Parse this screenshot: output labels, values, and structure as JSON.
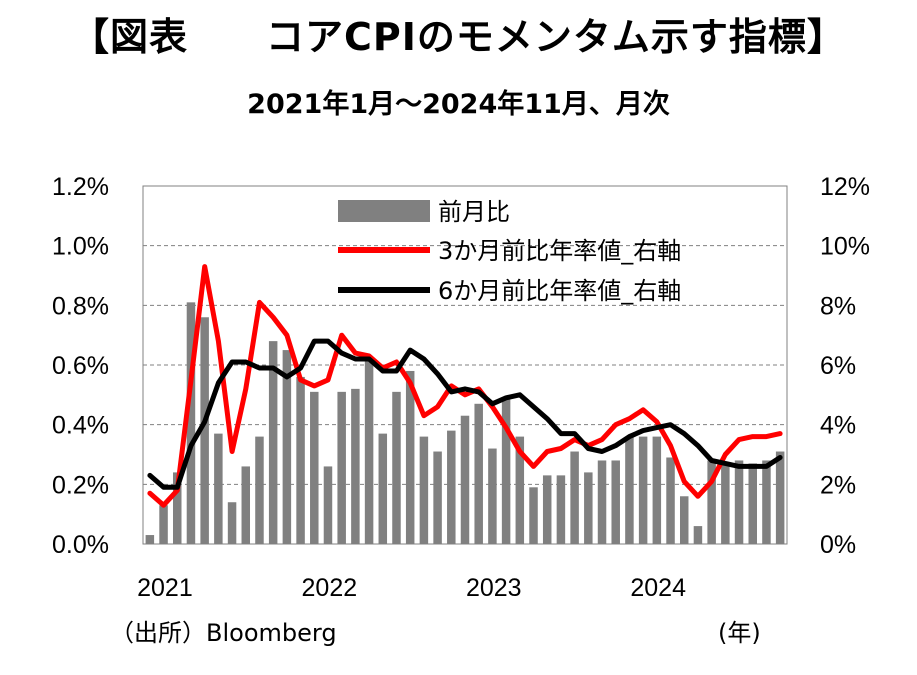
{
  "title": "【図表　　コアCPIのモメンタム示す指標】",
  "subtitle": "2021年1月～2024年11月、月次",
  "source_note": "（出所）Bloomberg",
  "year_unit_label": "(年)",
  "colors": {
    "bar": "#808080",
    "line3m": "#ff0000",
    "line6m": "#000000",
    "grid": "#808080"
  },
  "chart_data": {
    "type": "bar",
    "grid": true,
    "legend_position": "top-right",
    "x_tick_labels": [
      "2021",
      "2022",
      "2023",
      "2024"
    ],
    "y_left": {
      "ylim": [
        0,
        1.2
      ],
      "tick_labels": [
        "0.0%",
        "0.2%",
        "0.4%",
        "0.6%",
        "0.8%",
        "1.0%",
        "1.2%"
      ]
    },
    "y_right": {
      "ylim": [
        0,
        12
      ],
      "tick_labels": [
        "0%",
        "2%",
        "4%",
        "6%",
        "8%",
        "10%",
        "12%"
      ]
    },
    "categories": [
      "2021-01",
      "2021-02",
      "2021-03",
      "2021-04",
      "2021-05",
      "2021-06",
      "2021-07",
      "2021-08",
      "2021-09",
      "2021-10",
      "2021-11",
      "2021-12",
      "2022-01",
      "2022-02",
      "2022-03",
      "2022-04",
      "2022-05",
      "2022-06",
      "2022-07",
      "2022-08",
      "2022-09",
      "2022-10",
      "2022-11",
      "2022-12",
      "2023-01",
      "2023-02",
      "2023-03",
      "2023-04",
      "2023-05",
      "2023-06",
      "2023-07",
      "2023-08",
      "2023-09",
      "2023-10",
      "2023-11",
      "2023-12",
      "2024-01",
      "2024-02",
      "2024-03",
      "2024-04",
      "2024-05",
      "2024-06",
      "2024-07",
      "2024-08",
      "2024-09",
      "2024-10",
      "2024-11"
    ],
    "series": [
      {
        "name": "前月比",
        "type": "bar",
        "axis": "left",
        "values": [
          0.03,
          0.13,
          0.24,
          0.81,
          0.76,
          0.37,
          0.14,
          0.26,
          0.36,
          0.68,
          0.65,
          0.56,
          0.51,
          0.26,
          0.51,
          0.52,
          0.62,
          0.37,
          0.51,
          0.58,
          0.36,
          0.31,
          0.38,
          0.43,
          0.47,
          0.32,
          0.49,
          0.36,
          0.19,
          0.23,
          0.23,
          0.31,
          0.24,
          0.28,
          0.28,
          0.36,
          0.36,
          0.36,
          0.29,
          0.16,
          0.06,
          0.28,
          0.27,
          0.28,
          0.27,
          0.28,
          0.31
        ]
      },
      {
        "name": "3か月前比年率値_右軸",
        "type": "line",
        "axis": "right",
        "values": [
          1.7,
          1.3,
          1.8,
          5.5,
          9.3,
          6.8,
          3.1,
          5.2,
          8.1,
          7.6,
          7.0,
          5.5,
          5.3,
          5.5,
          7.0,
          6.4,
          6.3,
          5.9,
          6.1,
          5.4,
          4.3,
          4.6,
          5.3,
          5.0,
          5.2,
          4.6,
          3.9,
          3.1,
          2.6,
          3.1,
          3.2,
          3.5,
          3.3,
          3.5,
          4.0,
          4.2,
          4.5,
          4.1,
          3.3,
          2.1,
          1.6,
          2.1,
          3.0,
          3.5,
          3.6,
          3.6,
          3.7
        ]
      },
      {
        "name": "6か月前比年率値_右軸",
        "type": "line",
        "axis": "right",
        "values": [
          2.3,
          1.9,
          1.9,
          3.3,
          4.1,
          5.4,
          6.1,
          6.1,
          5.9,
          5.9,
          5.6,
          5.9,
          6.8,
          6.8,
          6.4,
          6.2,
          6.2,
          5.8,
          5.8,
          6.5,
          6.2,
          5.7,
          5.1,
          5.2,
          5.1,
          4.7,
          4.9,
          5.0,
          4.6,
          4.2,
          3.7,
          3.7,
          3.2,
          3.1,
          3.3,
          3.6,
          3.8,
          3.9,
          4.0,
          3.7,
          3.3,
          2.8,
          2.7,
          2.6,
          2.6,
          2.6,
          2.9
        ]
      }
    ]
  }
}
